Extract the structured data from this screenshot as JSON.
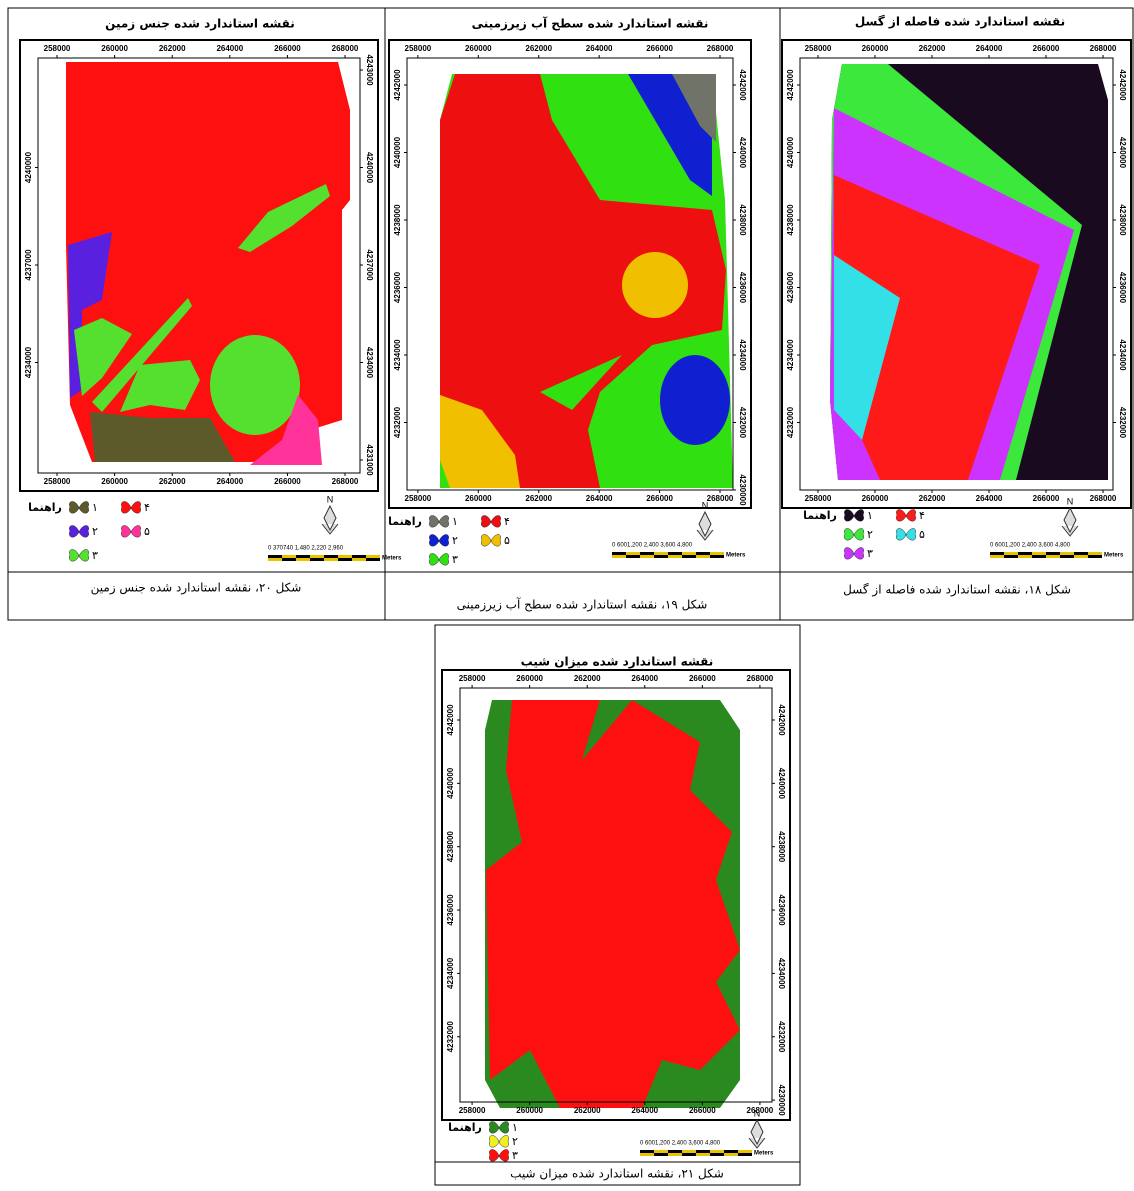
{
  "figures": [
    {
      "title": "نقشه استاندارد شده جنس زمین",
      "caption": "شکل ۲۰، نقشه استاندارد شده جنس زمین",
      "xlim": [
        257340,
        268520
      ],
      "ylim": [
        4230600,
        4243370
      ],
      "xticks": [
        258000,
        260000,
        262000,
        264000,
        266000,
        268000
      ],
      "yticks_left": [
        4240000,
        4237000,
        4234000
      ],
      "yticks_right": [
        4243000,
        4240000,
        4237000,
        4234000,
        4231000
      ],
      "legend_title": "راهنما",
      "legend": [
        {
          "label": "۱",
          "color": "#5c5a2a"
        },
        {
          "label": "۲",
          "color": "#5a20e0"
        },
        {
          "label": "۳",
          "color": "#55e030"
        },
        {
          "label": "۴",
          "color": "#ff1010"
        },
        {
          "label": "۵",
          "color": "#ff3399"
        }
      ],
      "north": "N",
      "scale": "0 370740 1,480 2,220 2,960",
      "scale_unit": "Meters"
    },
    {
      "title": "نقشه استاندارد شده سطح آب زیرزمینی",
      "caption": "شکل ۱۹، نقشه استاندارد شده سطح آب زیرزمینی",
      "xlim": [
        257640,
        268430
      ],
      "ylim": [
        4230000,
        4242800
      ],
      "xticks": [
        258000,
        260000,
        262000,
        264000,
        266000,
        268000
      ],
      "yticks_left": [
        4242000,
        4240000,
        4238000,
        4236000,
        4234000,
        4232000
      ],
      "yticks_right": [
        4242000,
        4240000,
        4238000,
        4236000,
        4234000,
        4232000,
        4230000
      ],
      "legend_title": "راهنما",
      "legend": [
        {
          "label": "۱",
          "color": "#707468"
        },
        {
          "label": "۲",
          "color": "#1020d0"
        },
        {
          "label": "۳",
          "color": "#30e010"
        },
        {
          "label": "۴",
          "color": "#ee1010"
        },
        {
          "label": "۵",
          "color": "#f0c000"
        }
      ],
      "north": "N",
      "scale": "0 6001,200 2,400 3,600 4,800",
      "scale_unit": "Meters"
    },
    {
      "title": "نقشه استاندارد شده فاصله از گسل",
      "caption": "شکل ۱۸، نقشه استاندارد شده فاصله از گسل",
      "xlim": [
        257370,
        268350
      ],
      "ylim": [
        4230000,
        4242800
      ],
      "xticks": [
        258000,
        260000,
        262000,
        264000,
        266000,
        268000
      ],
      "yticks_left": [
        4242000,
        4240000,
        4238000,
        4236000,
        4234000,
        4232000
      ],
      "yticks_right": [
        4242000,
        4240000,
        4238000,
        4236000,
        4234000,
        4232000
      ],
      "legend_title": "راهنما",
      "legend": [
        {
          "label": "۱",
          "color": "#1a0a20"
        },
        {
          "label": "۲",
          "color": "#3ce83c"
        },
        {
          "label": "۳",
          "color": "#cc33ff"
        },
        {
          "label": "۴",
          "color": "#ff1a1a"
        },
        {
          "label": "۵",
          "color": "#33e0e8"
        }
      ],
      "north": "N",
      "scale": "0 6001,200 2,400 3,600 4,800",
      "scale_unit": "Meters"
    },
    {
      "title": "نقشه استاندارد شده میزان شیب",
      "caption": "شکل ۲۱، نقشه استاندارد شده میزان شیب",
      "xlim": [
        257580,
        268420
      ],
      "ylim": [
        4229940,
        4243010
      ],
      "xticks": [
        258000,
        260000,
        262000,
        264000,
        266000,
        268000
      ],
      "yticks_left": [
        4242000,
        4240000,
        4238000,
        4236000,
        4234000,
        4232000
      ],
      "yticks_right": [
        4242000,
        4240000,
        4238000,
        4236000,
        4234000,
        4232000,
        4230000
      ],
      "legend_title": "راهنما",
      "legend": [
        {
          "label": "۱",
          "color": "#2a8a20"
        },
        {
          "label": "۲",
          "color": "#f0f020"
        },
        {
          "label": "۳",
          "color": "#ff1010"
        }
      ],
      "north": "N",
      "scale": "0 6001,200 2,400 3,600 4,800",
      "scale_unit": "Meters"
    }
  ]
}
